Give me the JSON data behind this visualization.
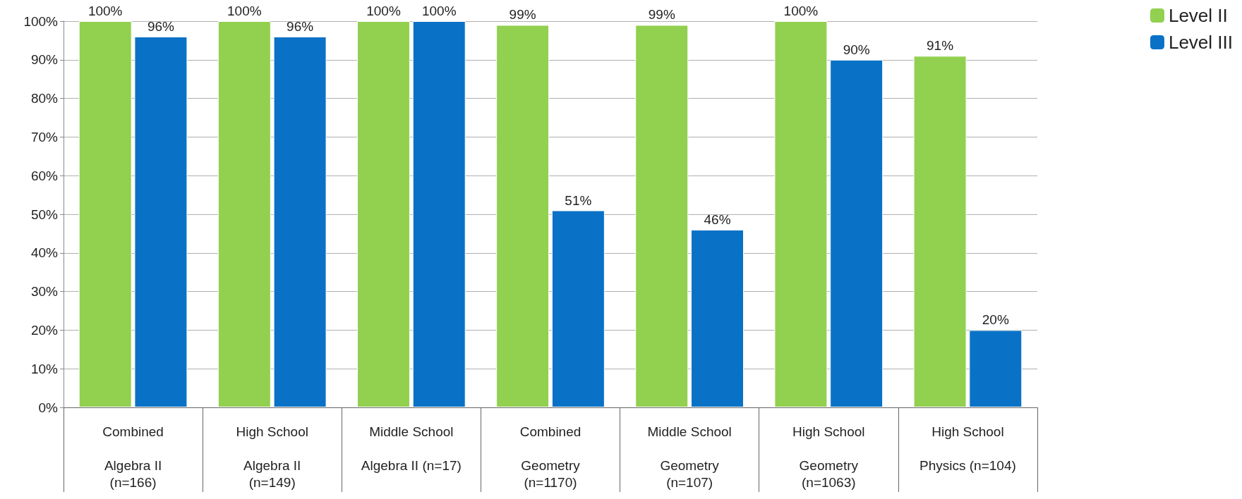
{
  "chart_data": {
    "type": "bar",
    "categories": [
      "Combined\n\nAlgebra II\n(n=166)",
      "High School\n\nAlgebra II\n(n=149)",
      "Middle School\n\nAlgebra II (n=17)",
      "Combined\n\nGeometry\n(n=1170)",
      "Middle School\n\nGeometry\n(n=107)",
      "High School\n\nGeometry\n(n=1063)",
      "High School\n\nPhysics (n=104)"
    ],
    "series": [
      {
        "name": "Level II",
        "color": "#92d050",
        "values": [
          100,
          100,
          100,
          99,
          99,
          100,
          91
        ],
        "value_labels": [
          "100%",
          "100%",
          "100%",
          "99%",
          "99%",
          "100%",
          "91%"
        ]
      },
      {
        "name": "Level III",
        "color": "#0a72c6",
        "values": [
          96,
          96,
          100,
          51,
          46,
          90,
          20
        ],
        "value_labels": [
          "96%",
          "96%",
          "100%",
          "51%",
          "46%",
          "90%",
          "20%"
        ]
      }
    ],
    "ylim": [
      0,
      100
    ],
    "yticks": [
      {
        "value": 0,
        "label": "0%"
      },
      {
        "value": 10,
        "label": "10%"
      },
      {
        "value": 20,
        "label": "20%"
      },
      {
        "value": 30,
        "label": "30%"
      },
      {
        "value": 40,
        "label": "40%"
      },
      {
        "value": 50,
        "label": "50%"
      },
      {
        "value": 60,
        "label": "60%"
      },
      {
        "value": 70,
        "label": "70%"
      },
      {
        "value": 80,
        "label": "80%"
      },
      {
        "value": 90,
        "label": "90%"
      },
      {
        "value": 100,
        "label": "100%"
      }
    ],
    "grid": "y",
    "legend": "top right"
  }
}
